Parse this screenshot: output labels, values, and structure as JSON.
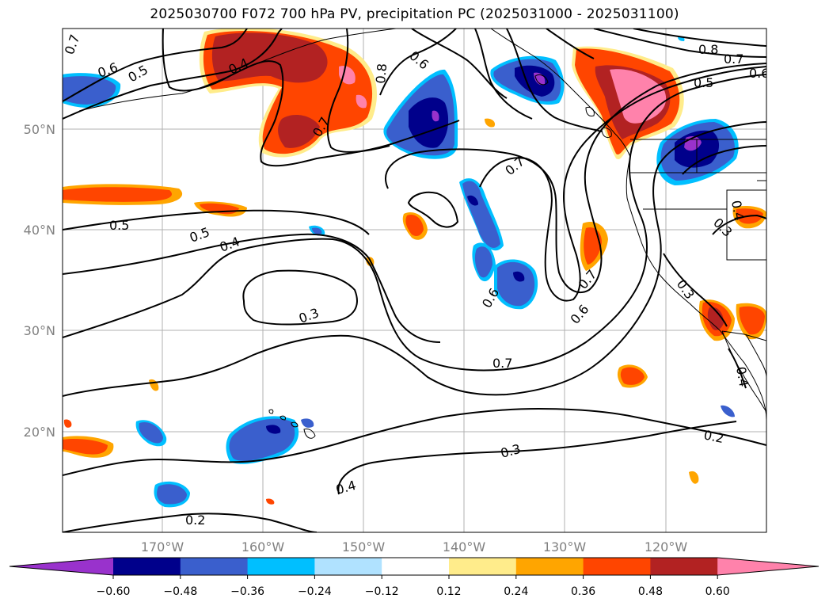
{
  "title": "2025030700 F072 700 hPa PV, precipitation PC (2025031000 - 2025031100)",
  "latitude_labels": [
    "50°N",
    "40°N",
    "30°N",
    "20°N"
  ],
  "longitude_labels": [
    "170°W",
    "160°W",
    "150°W",
    "140°W",
    "130°W",
    "120°W"
  ],
  "colorbar": {
    "ticks": [
      "−0.60",
      "−0.48",
      "−0.36",
      "−0.24",
      "−0.12",
      "0.12",
      "0.24",
      "0.36",
      "0.48",
      "0.60"
    ],
    "colors": [
      "#9932cc",
      "#00008b",
      "#3a5fcd",
      "#00bfff",
      "#b0e2ff",
      "#ffffff",
      "#ffec8b",
      "#ffa500",
      "#ff4500",
      "#b22222",
      "#ff82ab"
    ]
  },
  "contour_labels": [
    {
      "text": "0.7"
    },
    {
      "text": "0.6"
    },
    {
      "text": "0.5"
    },
    {
      "text": "0.4"
    },
    {
      "text": "0.7"
    },
    {
      "text": "0.8"
    },
    {
      "text": "0.6"
    },
    {
      "text": "0.8"
    },
    {
      "text": "0.7"
    },
    {
      "text": "0.5"
    },
    {
      "text": "0.6"
    },
    {
      "text": "0.5"
    },
    {
      "text": "0.5"
    },
    {
      "text": "0.4"
    },
    {
      "text": "0.3"
    },
    {
      "text": "0.7"
    },
    {
      "text": "0.7"
    },
    {
      "text": "0.6"
    },
    {
      "text": "0.7"
    },
    {
      "text": "0.6"
    },
    {
      "text": "0.3"
    },
    {
      "text": "0.4"
    },
    {
      "text": "0.2"
    },
    {
      "text": "0.2"
    },
    {
      "text": "0.3"
    },
    {
      "text": "0.4"
    },
    {
      "text": "0.3"
    },
    {
      "text": "0.4"
    }
  ]
}
